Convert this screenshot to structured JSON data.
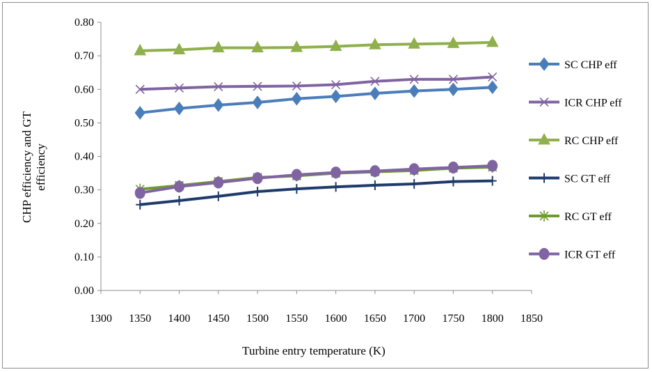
{
  "chart_data": {
    "type": "line",
    "title": "",
    "xlabel": "Turbine entry temperature (K)",
    "ylabel": "CHP efficiency and GT efficiency",
    "xlim": [
      1300,
      1850
    ],
    "ylim": [
      0.0,
      0.8
    ],
    "xticks": [
      1300,
      1350,
      1400,
      1450,
      1500,
      1550,
      1600,
      1650,
      1700,
      1750,
      1800,
      1850
    ],
    "xtick_labels": [
      "1300",
      "1350",
      "1400",
      "1450",
      "1500",
      "1550",
      "1600",
      "1650",
      "1700",
      "1750",
      "1800",
      "1850"
    ],
    "yticks": [
      0.0,
      0.1,
      0.2,
      0.3,
      0.4,
      0.5,
      0.6,
      0.7,
      0.8
    ],
    "ytick_labels": [
      "0.00",
      "0.10",
      "0.20",
      "0.30",
      "0.40",
      "0.50",
      "0.60",
      "0.70",
      "0.80"
    ],
    "grid": false,
    "legend_position": "right",
    "x": [
      1350,
      1400,
      1450,
      1500,
      1550,
      1600,
      1650,
      1700,
      1750,
      1800
    ],
    "series": [
      {
        "name": "SC CHP eff",
        "color": "#4a7ebb",
        "marker": "diamond",
        "values": [
          0.53,
          0.543,
          0.553,
          0.561,
          0.572,
          0.579,
          0.588,
          0.595,
          0.6,
          0.606
        ]
      },
      {
        "name": "ICR CHP eff",
        "color": "#8064a2",
        "marker": "x",
        "values": [
          0.6,
          0.604,
          0.608,
          0.609,
          0.61,
          0.614,
          0.624,
          0.63,
          0.63,
          0.637
        ]
      },
      {
        "name": "RC CHP eff",
        "color": "#8fb04c",
        "marker": "triangle",
        "values": [
          0.715,
          0.718,
          0.724,
          0.724,
          0.725,
          0.728,
          0.733,
          0.735,
          0.737,
          0.74
        ]
      },
      {
        "name": "SC GT eff",
        "color": "#1f3b6b",
        "marker": "plus",
        "values": [
          0.256,
          0.268,
          0.281,
          0.295,
          0.303,
          0.309,
          0.314,
          0.318,
          0.325,
          0.327
        ]
      },
      {
        "name": "RC GT eff",
        "color": "#6e9a2e",
        "marker": "asterisk",
        "values": [
          0.302,
          0.313,
          0.325,
          0.337,
          0.342,
          0.35,
          0.354,
          0.358,
          0.365,
          0.368
        ]
      },
      {
        "name": "ICR GT eff",
        "color": "#8064a2",
        "marker": "circle",
        "values": [
          0.291,
          0.31,
          0.322,
          0.335,
          0.345,
          0.352,
          0.356,
          0.362,
          0.367,
          0.372
        ]
      }
    ]
  }
}
